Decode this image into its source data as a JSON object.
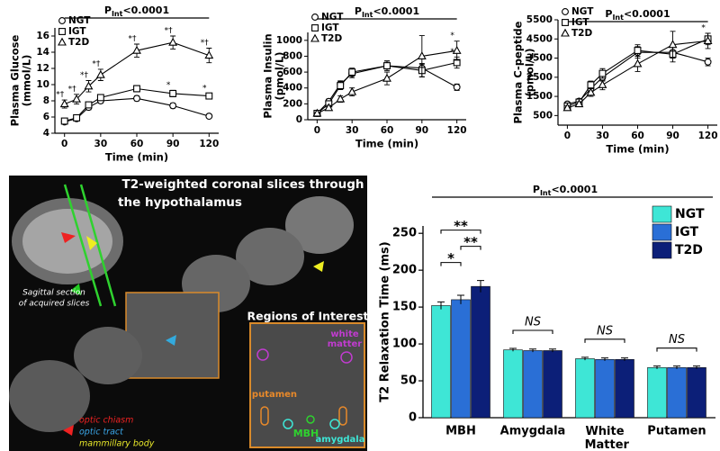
{
  "chart_data": [
    {
      "type": "line",
      "title": [
        "P",
        "Int",
        "<0.0001"
      ],
      "y_label": [
        "Plasma Glucose",
        "(mmol/L)"
      ],
      "x_label": "Time (min)",
      "x": [
        0,
        10,
        20,
        30,
        60,
        90,
        120
      ],
      "xlim": [
        -8,
        128
      ],
      "xticks": [
        0,
        30,
        60,
        90,
        120
      ],
      "ylim": [
        4,
        17
      ],
      "yticks": [
        4,
        6,
        8,
        10,
        12,
        14,
        16
      ],
      "series": [
        {
          "name": "NGT",
          "marker": "circle",
          "color": "#000000",
          "values": [
            5.4,
            5.8,
            7.2,
            8.0,
            8.3,
            7.4,
            6.1
          ],
          "errors": [
            0.2,
            0.2,
            0.3,
            0.3,
            0.3,
            0.3,
            0.2
          ],
          "point_labels": [
            null,
            null,
            null,
            null,
            null,
            null,
            null
          ]
        },
        {
          "name": "IGT",
          "marker": "square",
          "color": "#000000",
          "values": [
            5.5,
            5.9,
            7.5,
            8.4,
            9.5,
            8.9,
            8.6
          ],
          "errors": [
            0.2,
            0.2,
            0.3,
            0.3,
            0.4,
            0.4,
            0.3
          ],
          "point_labels": [
            null,
            null,
            null,
            null,
            null,
            "*",
            "*"
          ]
        },
        {
          "name": "T2D",
          "marker": "triangle",
          "color": "#000000",
          "values": [
            7.6,
            8.2,
            9.8,
            11.2,
            14.2,
            15.2,
            13.6
          ],
          "errors": [
            0.5,
            0.6,
            0.7,
            0.7,
            0.8,
            0.8,
            0.9
          ],
          "point_labels": [
            "*†",
            "*†",
            "*†",
            "*†",
            "*†",
            "*†",
            "*†"
          ]
        }
      ]
    },
    {
      "type": "line",
      "title": [
        "P",
        "Int",
        "<0.0001"
      ],
      "y_label": [
        "Plasma Insulin",
        "(pmol/L)"
      ],
      "x_label": "Time (min)",
      "x": [
        0,
        10,
        20,
        30,
        60,
        90,
        120
      ],
      "xlim": [
        -8,
        128
      ],
      "xticks": [
        0,
        30,
        60,
        90,
        120
      ],
      "ylim": [
        0,
        1100
      ],
      "yticks": [
        0,
        200,
        400,
        600,
        800,
        1000
      ],
      "series": [
        {
          "name": "NGT",
          "marker": "circle",
          "color": "#000000",
          "values": [
            80,
            230,
            450,
            580,
            680,
            650,
            410
          ],
          "errors": [
            10,
            30,
            40,
            50,
            60,
            60,
            40
          ],
          "point_labels": [
            null,
            null,
            null,
            null,
            null,
            null,
            null
          ]
        },
        {
          "name": "IGT",
          "marker": "square",
          "color": "#000000",
          "values": [
            80,
            200,
            430,
            600,
            680,
            620,
            720
          ],
          "errors": [
            10,
            30,
            50,
            50,
            60,
            80,
            70
          ],
          "point_labels": [
            null,
            null,
            null,
            null,
            null,
            null,
            "*"
          ]
        },
        {
          "name": "T2D",
          "marker": "triangle",
          "color": "#000000",
          "values": [
            80,
            150,
            260,
            350,
            520,
            800,
            870
          ],
          "errors": [
            10,
            30,
            40,
            50,
            80,
            260,
            120
          ],
          "point_labels": [
            null,
            null,
            null,
            null,
            null,
            null,
            "*"
          ]
        }
      ]
    },
    {
      "type": "line",
      "title": [
        "P",
        "Int",
        "<0.0001"
      ],
      "y_label": [
        "Plasma C-peptide",
        "(pmol/L)"
      ],
      "x_label": "Time (min)",
      "x": [
        0,
        10,
        20,
        30,
        60,
        90,
        120
      ],
      "xlim": [
        -8,
        128
      ],
      "xticks": [
        0,
        30,
        60,
        90,
        120
      ],
      "ylim": [
        0,
        5500
      ],
      "yticks": [
        500,
        1500,
        2500,
        3500,
        4500,
        5500
      ],
      "series": [
        {
          "name": "NGT",
          "marker": "circle",
          "color": "#000000",
          "values": [
            1100,
            1250,
            1900,
            2500,
            3800,
            3800,
            3300
          ],
          "errors": [
            100,
            120,
            150,
            200,
            300,
            300,
            200
          ],
          "point_labels": [
            null,
            null,
            null,
            null,
            null,
            null,
            null
          ]
        },
        {
          "name": "IGT",
          "marker": "square",
          "color": "#000000",
          "values": [
            1000,
            1200,
            2100,
            2700,
            3900,
            3700,
            4500
          ],
          "errors": [
            100,
            120,
            200,
            250,
            300,
            400,
            300
          ],
          "point_labels": [
            null,
            null,
            null,
            null,
            null,
            null,
            null
          ]
        },
        {
          "name": "T2D",
          "marker": "triangle",
          "color": "#000000",
          "values": [
            900,
            1100,
            1700,
            2100,
            3200,
            4200,
            4400
          ],
          "errors": [
            100,
            120,
            200,
            250,
            400,
            700,
            400
          ],
          "point_labels": [
            null,
            null,
            null,
            null,
            null,
            null,
            "*"
          ]
        }
      ]
    },
    {
      "type": "bar",
      "title": [
        "P",
        "Int",
        "<0.0001"
      ],
      "y_label": "T2 Relaxation Time  (ms)",
      "categories": [
        "MBH",
        "Amygdala",
        "White Matter",
        "Putamen"
      ],
      "ylim": [
        0,
        260
      ],
      "yticks": [
        0,
        50,
        100,
        150,
        200,
        250
      ],
      "series": [
        {
          "name": "NGT",
          "color": "#3ee6d6",
          "values": [
            152,
            92,
            80,
            68
          ],
          "errors": [
            5,
            2,
            2,
            2
          ]
        },
        {
          "name": "IGT",
          "color": "#2a6fd6",
          "values": [
            160,
            91,
            79,
            68
          ],
          "errors": [
            6,
            2,
            2,
            2
          ]
        },
        {
          "name": "T2D",
          "color": "#0c1f78",
          "values": [
            178,
            91,
            79,
            68
          ],
          "errors": [
            8,
            2,
            2,
            2
          ]
        }
      ],
      "comparisons": [
        {
          "text": "*",
          "category": "MBH",
          "from": "NGT",
          "to": "IGT"
        },
        {
          "text": "**",
          "category": "MBH",
          "from": "IGT",
          "to": "T2D"
        },
        {
          "text": "**",
          "category": "MBH",
          "from": "NGT",
          "to": "T2D"
        },
        {
          "text": "NS",
          "category": "Amygdala",
          "from": "NGT",
          "to": "T2D"
        },
        {
          "text": "NS",
          "category": "White Matter",
          "from": "NGT",
          "to": "T2D"
        },
        {
          "text": "NS",
          "category": "Putamen",
          "from": "NGT",
          "to": "T2D"
        }
      ]
    }
  ],
  "mri_panel": {
    "title": [
      "T2-weighted coronal slices through",
      "the hypothalamus"
    ],
    "sagittal_note": [
      "Sagittal section",
      "of acquired slices"
    ],
    "roi_title": "Regions of Interest",
    "roi_labels": {
      "white_matter": [
        "white",
        "matter"
      ],
      "putamen": "putamen",
      "mbh": "MBH",
      "amygdala": "amygdala"
    },
    "key": {
      "optic_chiasm": "optic chiasm",
      "optic_tract": "optic tract",
      "mammillary_body": "mammillary body"
    }
  }
}
